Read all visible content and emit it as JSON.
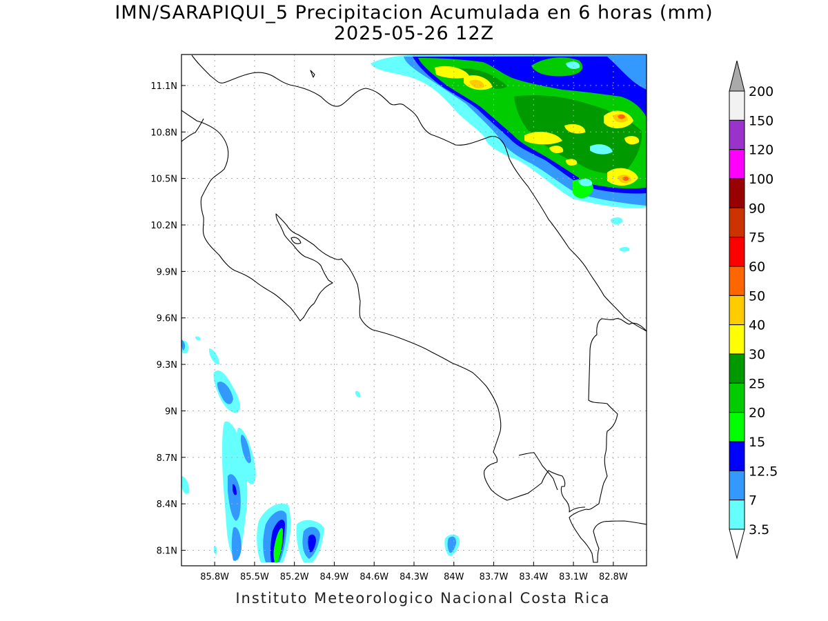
{
  "title": {
    "line1": "IMN/SARAPIQUI_5 Precipitacion Acumulada en 6 horas (mm)",
    "line2": "2025-05-26 12Z"
  },
  "footer": "Instituto Meteorologico Nacional Costa Rica",
  "map": {
    "lon_range": [
      -86.05,
      -82.55
    ],
    "lat_range": [
      8.0,
      11.3
    ],
    "lon_ticks": [
      "85.8W",
      "85.5W",
      "85.2W",
      "84.9W",
      "84.6W",
      "84.3W",
      "84W",
      "83.7W",
      "83.4W",
      "83.1W",
      "82.8W"
    ],
    "lat_ticks": [
      "11.1N",
      "10.8N",
      "10.5N",
      "10.2N",
      "9.9N",
      "9.6N",
      "9.3N",
      "9N",
      "8.7N",
      "8.4N",
      "8.1N"
    ],
    "grid": "dotted"
  },
  "colorbar": {
    "labels": [
      "200",
      "150",
      "120",
      "100",
      "90",
      "75",
      "60",
      "50",
      "40",
      "30",
      "25",
      "20",
      "15",
      "12.5",
      "7",
      "3.5"
    ],
    "colors": {
      "3.5": "#66ffff",
      "7": "#3399ff",
      "12.5": "#0000ff",
      "15": "#00ff00",
      "20": "#00cc00",
      "25": "#009900",
      "30": "#ffff00",
      "40": "#ffcc00",
      "50": "#ff6600",
      "60": "#ff0000",
      "75": "#cc3300",
      "90": "#990000",
      "100": "#ff00ff",
      "120": "#9933cc",
      "150": "#f2f2f2",
      "200": "#aaaaaa"
    }
  }
}
